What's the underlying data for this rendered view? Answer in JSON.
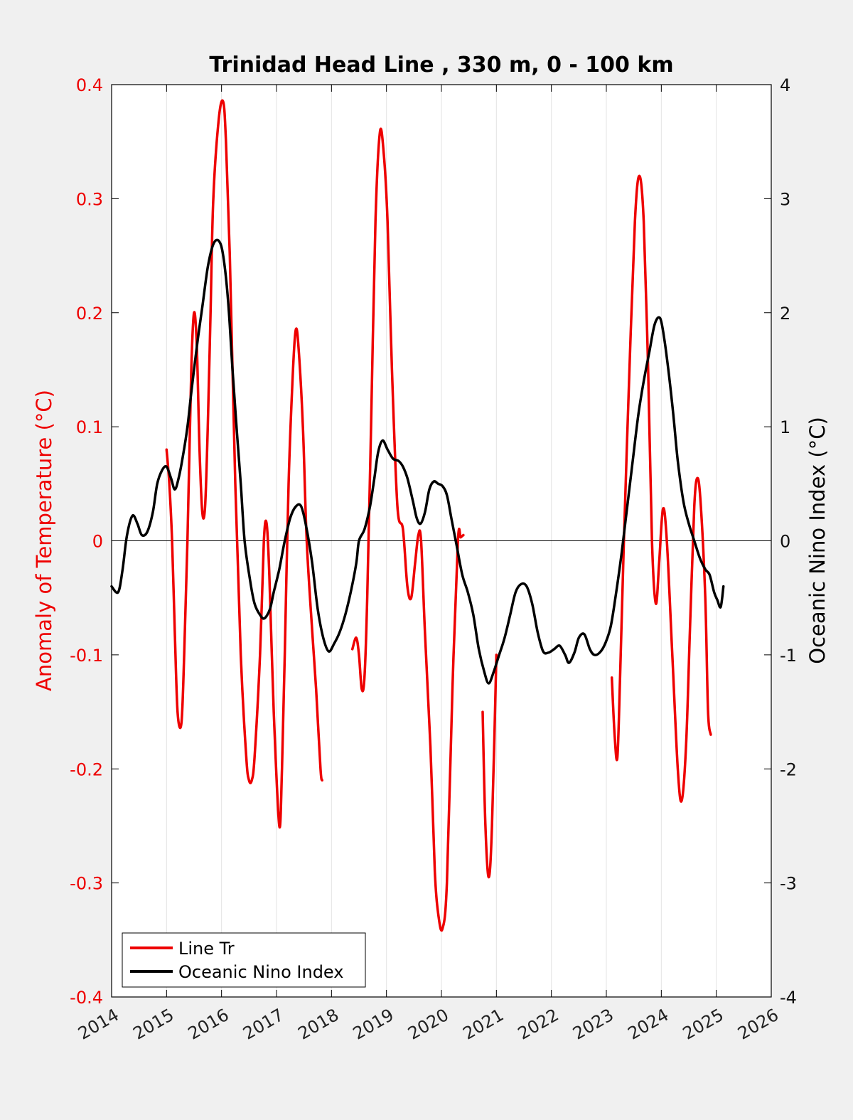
{
  "chart_data": {
    "type": "line",
    "title": "Trinidad Head Line , 330 m, 0 - 100 km",
    "ylabel_left": "Anomaly of Temperature (°C)",
    "ylabel_right": "Oceanic Nino Index (°C)",
    "xlabel": "",
    "xlim": [
      2014,
      2026
    ],
    "ylim_left": [
      -0.4,
      0.4
    ],
    "ylim_right": [
      -4,
      4
    ],
    "x_ticks": [
      "2014",
      "2015",
      "2016",
      "2017",
      "2018",
      "2019",
      "2020",
      "2021",
      "2022",
      "2023",
      "2024",
      "2025",
      "2026"
    ],
    "y_left_ticks": [
      "0.4",
      "0.3",
      "0.2",
      "0.1",
      "0",
      "-0.1",
      "-0.2",
      "-0.3",
      "-0.4"
    ],
    "y_right_ticks": [
      "4",
      "3",
      "2",
      "1",
      "0",
      "-1",
      "-2",
      "-3",
      "-4"
    ],
    "grid": "vertical",
    "legend_position": "bottom-left",
    "colors": {
      "line_tr": "#ee0000",
      "oni": "#000000"
    },
    "series": [
      {
        "name": "Line Tr",
        "axis": "left",
        "segments": [
          [
            [
              2015.0,
              0.08
            ],
            [
              2015.05,
              0.05
            ],
            [
              2015.1,
              0.0
            ],
            [
              2015.15,
              -0.08
            ],
            [
              2015.2,
              -0.15
            ],
            [
              2015.27,
              -0.16
            ],
            [
              2015.32,
              -0.1
            ],
            [
              2015.38,
              0.0
            ],
            [
              2015.45,
              0.15
            ],
            [
              2015.5,
              0.2
            ],
            [
              2015.55,
              0.17
            ],
            [
              2015.6,
              0.08
            ],
            [
              2015.65,
              0.025
            ],
            [
              2015.7,
              0.03
            ],
            [
              2015.75,
              0.1
            ],
            [
              2015.8,
              0.2
            ],
            [
              2015.85,
              0.3
            ],
            [
              2015.95,
              0.37
            ],
            [
              2016.03,
              0.385
            ],
            [
              2016.08,
              0.35
            ],
            [
              2016.15,
              0.25
            ],
            [
              2016.25,
              0.05
            ],
            [
              2016.35,
              -0.1
            ],
            [
              2016.45,
              -0.19
            ],
            [
              2016.5,
              -0.21
            ],
            [
              2016.55,
              -0.21
            ],
            [
              2016.6,
              -0.19
            ],
            [
              2016.7,
              -0.1
            ],
            [
              2016.77,
              0.0
            ],
            [
              2016.82,
              0.015
            ],
            [
              2016.87,
              -0.03
            ],
            [
              2016.95,
              -0.15
            ],
            [
              2017.05,
              -0.25
            ],
            [
              2017.1,
              -0.2
            ],
            [
              2017.15,
              -0.1
            ],
            [
              2017.22,
              0.05
            ],
            [
              2017.3,
              0.15
            ],
            [
              2017.35,
              0.185
            ],
            [
              2017.4,
              0.17
            ],
            [
              2017.48,
              0.1
            ],
            [
              2017.55,
              0.0
            ],
            [
              2017.65,
              -0.08
            ],
            [
              2017.72,
              -0.13
            ],
            [
              2017.8,
              -0.2
            ],
            [
              2017.83,
              -0.21
            ]
          ],
          [
            [
              2018.38,
              -0.095
            ],
            [
              2018.45,
              -0.085
            ],
            [
              2018.5,
              -0.1
            ],
            [
              2018.55,
              -0.13
            ],
            [
              2018.6,
              -0.12
            ],
            [
              2018.65,
              -0.05
            ],
            [
              2018.72,
              0.1
            ],
            [
              2018.8,
              0.28
            ],
            [
              2018.88,
              0.358
            ],
            [
              2018.95,
              0.34
            ],
            [
              2019.02,
              0.28
            ],
            [
              2019.1,
              0.15
            ],
            [
              2019.2,
              0.03
            ],
            [
              2019.3,
              0.01
            ],
            [
              2019.38,
              -0.04
            ],
            [
              2019.45,
              -0.05
            ],
            [
              2019.52,
              -0.02
            ],
            [
              2019.58,
              0.005
            ],
            [
              2019.63,
              0.0
            ],
            [
              2019.7,
              -0.08
            ],
            [
              2019.8,
              -0.18
            ],
            [
              2019.88,
              -0.29
            ],
            [
              2019.95,
              -0.33
            ],
            [
              2020.02,
              -0.34
            ],
            [
              2020.1,
              -0.3
            ],
            [
              2020.2,
              -0.13
            ],
            [
              2020.3,
              0.0
            ],
            [
              2020.35,
              0.003
            ],
            [
              2020.4,
              0.005
            ]
          ],
          [
            [
              2020.75,
              -0.15
            ],
            [
              2020.8,
              -0.25
            ],
            [
              2020.86,
              -0.295
            ],
            [
              2020.92,
              -0.25
            ],
            [
              2021.0,
              -0.1
            ]
          ],
          [
            [
              2023.1,
              -0.12
            ],
            [
              2023.15,
              -0.17
            ],
            [
              2023.2,
              -0.19
            ],
            [
              2023.25,
              -0.12
            ],
            [
              2023.32,
              0.0
            ],
            [
              2023.42,
              0.15
            ],
            [
              2023.52,
              0.28
            ],
            [
              2023.6,
              0.32
            ],
            [
              2023.68,
              0.28
            ],
            [
              2023.76,
              0.15
            ],
            [
              2023.83,
              0.0
            ],
            [
              2023.9,
              -0.055
            ],
            [
              2023.96,
              -0.02
            ],
            [
              2024.03,
              0.028
            ],
            [
              2024.1,
              0.0
            ],
            [
              2024.2,
              -0.1
            ],
            [
              2024.3,
              -0.2
            ],
            [
              2024.37,
              -0.228
            ],
            [
              2024.45,
              -0.18
            ],
            [
              2024.52,
              -0.08
            ],
            [
              2024.6,
              0.03
            ],
            [
              2024.66,
              0.055
            ],
            [
              2024.72,
              0.03
            ],
            [
              2024.8,
              -0.05
            ],
            [
              2024.85,
              -0.15
            ],
            [
              2024.9,
              -0.17
            ]
          ]
        ]
      },
      {
        "name": "Oceanic Nino Index",
        "axis": "right",
        "segments": [
          [
            [
              2014.0,
              -0.4
            ],
            [
              2014.12,
              -0.45
            ],
            [
              2014.2,
              -0.25
            ],
            [
              2014.28,
              0.05
            ],
            [
              2014.38,
              0.22
            ],
            [
              2014.47,
              0.15
            ],
            [
              2014.55,
              0.05
            ],
            [
              2014.65,
              0.08
            ],
            [
              2014.75,
              0.25
            ],
            [
              2014.83,
              0.5
            ],
            [
              2014.92,
              0.62
            ],
            [
              2015.0,
              0.65
            ],
            [
              2015.08,
              0.55
            ],
            [
              2015.15,
              0.45
            ],
            [
              2015.22,
              0.55
            ],
            [
              2015.3,
              0.75
            ],
            [
              2015.38,
              1.0
            ],
            [
              2015.45,
              1.3
            ],
            [
              2015.55,
              1.7
            ],
            [
              2015.65,
              2.05
            ],
            [
              2015.75,
              2.4
            ],
            [
              2015.85,
              2.6
            ],
            [
              2015.95,
              2.63
            ],
            [
              2016.03,
              2.5
            ],
            [
              2016.12,
              2.1
            ],
            [
              2016.2,
              1.5
            ],
            [
              2016.28,
              0.95
            ],
            [
              2016.35,
              0.5
            ],
            [
              2016.42,
              0.0
            ],
            [
              2016.52,
              -0.35
            ],
            [
              2016.6,
              -0.55
            ],
            [
              2016.7,
              -0.65
            ],
            [
              2016.78,
              -0.68
            ],
            [
              2016.88,
              -0.6
            ],
            [
              2016.95,
              -0.45
            ],
            [
              2017.05,
              -0.25
            ],
            [
              2017.15,
              0.0
            ],
            [
              2017.25,
              0.2
            ],
            [
              2017.35,
              0.3
            ],
            [
              2017.45,
              0.3
            ],
            [
              2017.55,
              0.1
            ],
            [
              2017.65,
              -0.2
            ],
            [
              2017.75,
              -0.6
            ],
            [
              2017.85,
              -0.85
            ],
            [
              2017.95,
              -0.97
            ],
            [
              2018.05,
              -0.9
            ],
            [
              2018.15,
              -0.8
            ],
            [
              2018.25,
              -0.65
            ],
            [
              2018.35,
              -0.45
            ],
            [
              2018.45,
              -0.2
            ],
            [
              2018.5,
              0.0
            ],
            [
              2018.6,
              0.1
            ],
            [
              2018.7,
              0.3
            ],
            [
              2018.78,
              0.55
            ],
            [
              2018.85,
              0.78
            ],
            [
              2018.93,
              0.88
            ],
            [
              2019.02,
              0.8
            ],
            [
              2019.12,
              0.72
            ],
            [
              2019.22,
              0.7
            ],
            [
              2019.3,
              0.65
            ],
            [
              2019.38,
              0.55
            ],
            [
              2019.48,
              0.35
            ],
            [
              2019.55,
              0.2
            ],
            [
              2019.62,
              0.15
            ],
            [
              2019.7,
              0.25
            ],
            [
              2019.78,
              0.45
            ],
            [
              2019.86,
              0.52
            ],
            [
              2019.94,
              0.5
            ],
            [
              2020.02,
              0.48
            ],
            [
              2020.1,
              0.4
            ],
            [
              2020.18,
              0.2
            ],
            [
              2020.28,
              -0.05
            ],
            [
              2020.38,
              -0.3
            ],
            [
              2020.48,
              -0.45
            ],
            [
              2020.58,
              -0.65
            ],
            [
              2020.68,
              -0.95
            ],
            [
              2020.78,
              -1.15
            ],
            [
              2020.86,
              -1.25
            ],
            [
              2020.95,
              -1.15
            ],
            [
              2021.05,
              -1.0
            ],
            [
              2021.15,
              -0.85
            ],
            [
              2021.25,
              -0.65
            ],
            [
              2021.35,
              -0.45
            ],
            [
              2021.45,
              -0.38
            ],
            [
              2021.55,
              -0.4
            ],
            [
              2021.65,
              -0.55
            ],
            [
              2021.75,
              -0.8
            ],
            [
              2021.85,
              -0.97
            ],
            [
              2021.95,
              -0.98
            ],
            [
              2022.05,
              -0.95
            ],
            [
              2022.15,
              -0.92
            ],
            [
              2022.25,
              -1.0
            ],
            [
              2022.32,
              -1.07
            ],
            [
              2022.42,
              -0.98
            ],
            [
              2022.5,
              -0.85
            ],
            [
              2022.6,
              -0.82
            ],
            [
              2022.7,
              -0.95
            ],
            [
              2022.78,
              -1.0
            ],
            [
              2022.88,
              -0.98
            ],
            [
              2022.98,
              -0.9
            ],
            [
              2023.08,
              -0.75
            ],
            [
              2023.18,
              -0.45
            ],
            [
              2023.28,
              -0.1
            ],
            [
              2023.38,
              0.3
            ],
            [
              2023.48,
              0.7
            ],
            [
              2023.58,
              1.1
            ],
            [
              2023.68,
              1.4
            ],
            [
              2023.78,
              1.65
            ],
            [
              2023.88,
              1.9
            ],
            [
              2023.98,
              1.95
            ],
            [
              2024.06,
              1.75
            ],
            [
              2024.14,
              1.45
            ],
            [
              2024.22,
              1.1
            ],
            [
              2024.3,
              0.7
            ],
            [
              2024.4,
              0.35
            ],
            [
              2024.5,
              0.15
            ],
            [
              2024.6,
              0.0
            ],
            [
              2024.7,
              -0.15
            ],
            [
              2024.8,
              -0.25
            ],
            [
              2024.88,
              -0.3
            ],
            [
              2024.96,
              -0.45
            ],
            [
              2025.02,
              -0.52
            ],
            [
              2025.08,
              -0.58
            ],
            [
              2025.13,
              -0.4
            ]
          ]
        ]
      }
    ],
    "reference_line": {
      "axis": "left",
      "y": 0
    }
  }
}
